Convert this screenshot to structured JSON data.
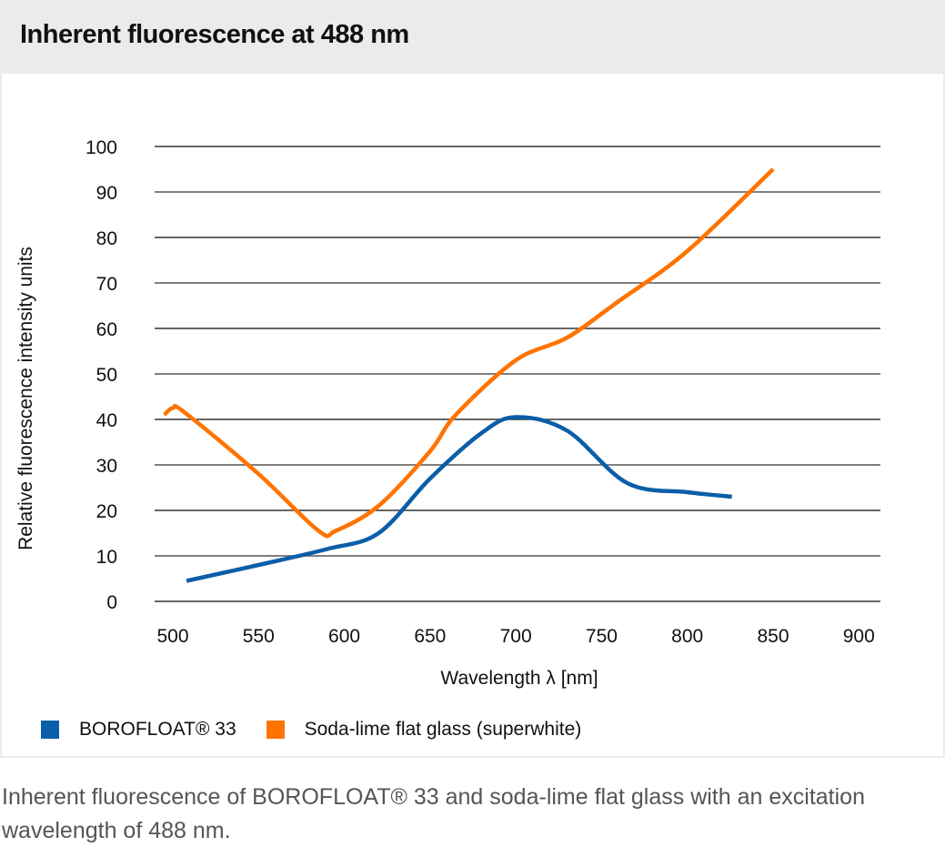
{
  "header": {
    "title": "Inherent fluorescence at 488 nm"
  },
  "legend": {
    "items": [
      {
        "label": "BOROFLOAT® 33",
        "color": "#0b5ea8"
      },
      {
        "label": "Soda-lime flat glass (superwhite)",
        "color": "#ff7300"
      }
    ]
  },
  "caption": "Inherent fluorescence of BOROFLOAT® 33 and soda-lime flat glass with an excitation wavelength of 488 nm.",
  "chart_data": {
    "type": "line",
    "title": "Inherent fluorescence at 488 nm",
    "xlabel": "Wavelength λ [nm]",
    "ylabel": "Relative fluorescence intensity units",
    "xlim": [
      500,
      900
    ],
    "ylim": [
      0,
      100
    ],
    "x_ticks": [
      500,
      550,
      600,
      650,
      700,
      750,
      800,
      850,
      900
    ],
    "y_ticks": [
      0,
      10,
      20,
      30,
      40,
      50,
      60,
      70,
      80,
      90,
      100
    ],
    "grid": "horizontal",
    "legend_position": "bottom",
    "series": [
      {
        "name": "BOROFLOAT® 33",
        "color": "#0b5ea8",
        "x": [
          508,
          550,
          590,
          620,
          650,
          680,
          700,
          730,
          765,
          800,
          826
        ],
        "y": [
          4.5,
          8,
          11.5,
          15,
          27,
          37,
          40.5,
          37.5,
          26,
          24,
          23
        ]
      },
      {
        "name": "Soda-lime flat glass (superwhite)",
        "color": "#ff7300",
        "x": [
          495,
          500,
          507,
          550,
          585,
          595,
          620,
          650,
          665,
          700,
          730,
          760,
          800,
          850
        ],
        "y": [
          41,
          42.5,
          41.5,
          28,
          15.5,
          15.5,
          21,
          33,
          41,
          53,
          58,
          66,
          77,
          95
        ]
      }
    ]
  }
}
